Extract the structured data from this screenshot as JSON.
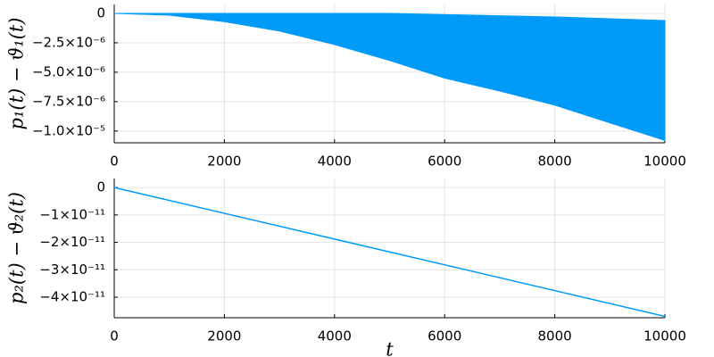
{
  "chart_data": [
    {
      "type": "band",
      "ylabel": "p₁(t) − ϑ₁(t)",
      "color": "#009af9",
      "x": [
        0,
        1000,
        2000,
        3000,
        4000,
        5000,
        6000,
        7000,
        8000,
        9000,
        10000
      ],
      "upper": [
        0,
        0,
        0,
        0,
        0,
        0,
        -1e-07,
        -2e-07,
        -3e-07,
        -4.5e-07,
        -6e-07
      ],
      "lower": [
        0,
        -1.5e-07,
        -7e-07,
        -1.5e-06,
        -2.65e-06,
        -4e-06,
        -5.5e-06,
        -6.6e-06,
        -7.8e-06,
        -9.3e-06,
        -1.08e-05
      ],
      "xlim": [
        0,
        10000
      ],
      "xticks": [
        0,
        2000,
        4000,
        6000,
        8000,
        10000
      ],
      "ylim": [
        -1.1e-05,
        7.6e-07
      ],
      "yticks": [
        0,
        {
          "value": -2.5e-06,
          "label": "−2.5×10⁻⁶"
        },
        {
          "value": -5e-06,
          "label": "−5.0×10⁻⁶"
        },
        {
          "value": -7.5e-06,
          "label": "−7.5×10⁻⁶"
        },
        {
          "value": -1e-05,
          "label": "−1.0×10⁻⁵"
        }
      ],
      "grid": true
    },
    {
      "type": "line",
      "ylabel": "p₂(t) − ϑ₂(t)",
      "xlabel": "t",
      "color": "#009af9",
      "x": [
        0,
        10000
      ],
      "values": [
        0,
        -4.7e-11
      ],
      "xlim": [
        0,
        10000
      ],
      "xticks": [
        0,
        2000,
        4000,
        6000,
        8000,
        10000
      ],
      "ylim": [
        -4.75e-11,
        3.3e-12
      ],
      "yticks": [
        0,
        {
          "value": -1e-11,
          "label": "−1×10⁻¹¹"
        },
        {
          "value": -2e-11,
          "label": "−2×10⁻¹¹"
        },
        {
          "value": -3e-11,
          "label": "−3×10⁻¹¹"
        },
        {
          "value": -4e-11,
          "label": "−4×10⁻¹¹"
        }
      ],
      "grid": true
    }
  ]
}
